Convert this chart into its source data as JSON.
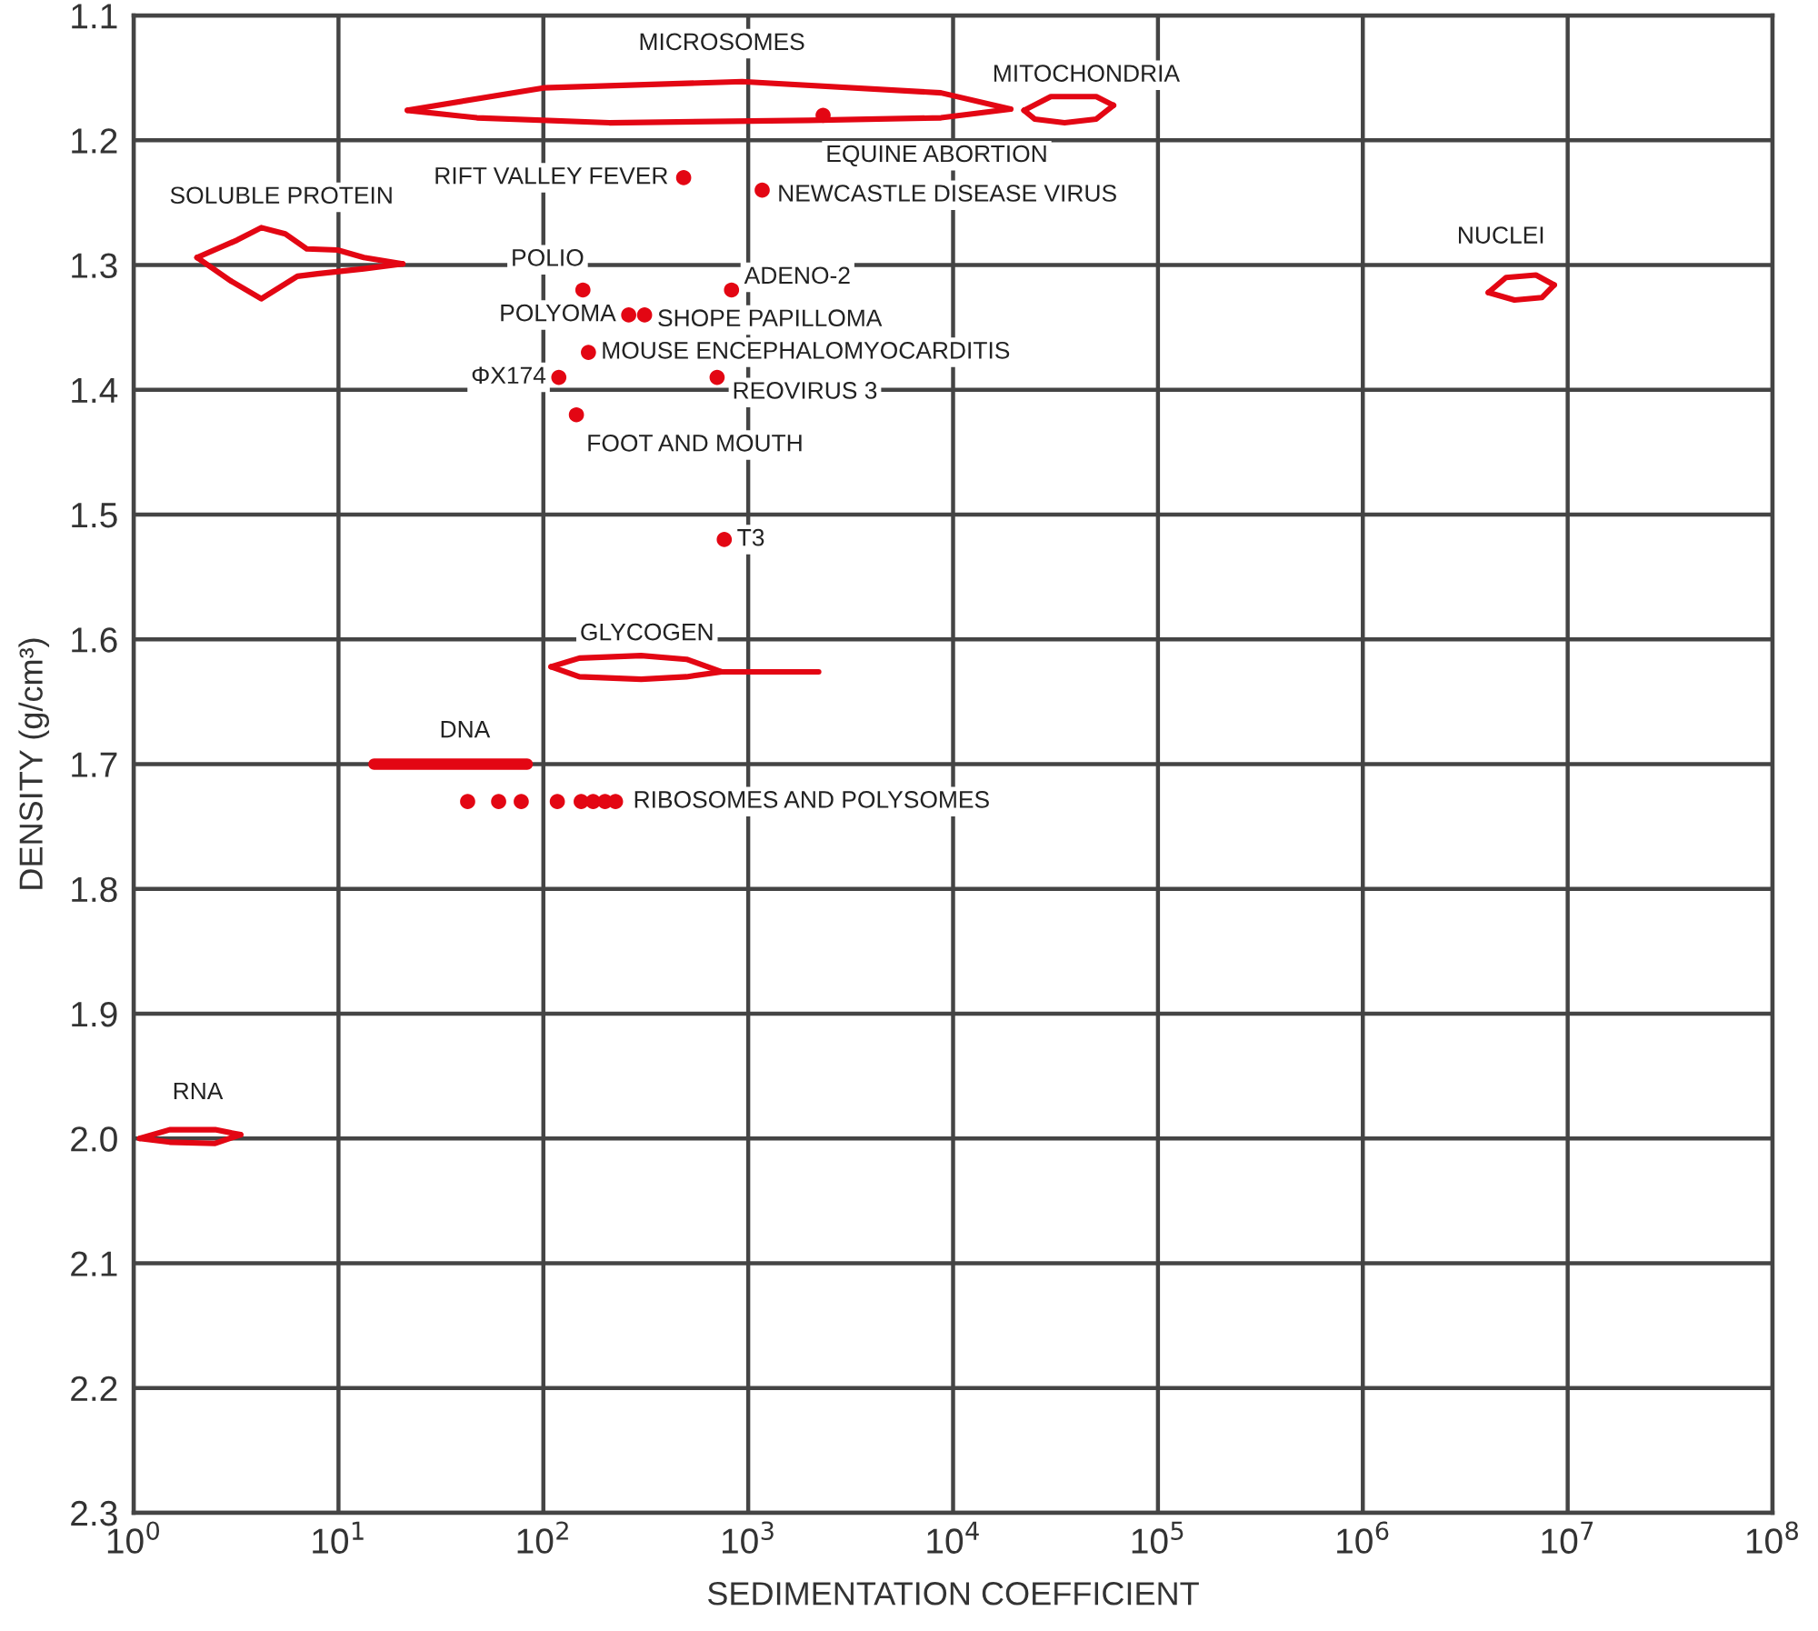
{
  "chart_data": {
    "type": "scatter",
    "xlabel": "SEDIMENTATION COEFFICIENT",
    "ylabel": "DENSITY (g/cm³)",
    "log": "x",
    "grid": true,
    "marker": "circle",
    "xlim": [
      1,
      100000000
    ],
    "ylim": [
      2.3,
      1.1
    ],
    "xticks": [
      {
        "value": 1,
        "label": "10$^{0}$"
      },
      {
        "value": 10,
        "label": "10$^{1}$"
      },
      {
        "value": 100,
        "label": "10$^{2}$"
      },
      {
        "value": 1000,
        "label": "10$^{3}$"
      },
      {
        "value": 10000,
        "label": "10$^{4}$"
      },
      {
        "value": 100000,
        "label": "10$^{5}$"
      },
      {
        "value": 1000000,
        "label": "10$^{6}$"
      },
      {
        "value": 10000000,
        "label": "10$^{7}$"
      },
      {
        "value": 100000000,
        "label": "10$^{8}$"
      }
    ],
    "yticks": [
      1.1,
      1.2,
      1.3,
      1.4,
      1.5,
      1.6,
      1.7,
      1.8,
      1.9,
      {
        "value": 2,
        "label": "2.0"
      },
      2.1,
      2.2,
      2.3
    ],
    "series": [
      {
        "name": "MICROSOMES",
        "type": "line",
        "marker": "none",
        "color": "#e30613",
        "x": [
          21.7,
          100,
          933,
          8730,
          19100
        ],
        "values": [
          1.176,
          1.158,
          1.153,
          1.162,
          1.175
        ]
      },
      {
        "type": "line",
        "marker": "none",
        "color": "#e30613",
        "x": [
          21.7,
          47.4,
          210,
          1970,
          8730,
          19100
        ],
        "values": [
          1.176,
          1.182,
          1.186,
          1.184,
          1.182,
          1.175
        ]
      },
      {
        "name": "MITOCHONDRIA",
        "type": "line",
        "marker": "none",
        "color": "#e30613",
        "x": [
          22200,
          30000,
          50000,
          60700
        ],
        "values": [
          1.176,
          1.165,
          1.165,
          1.172
        ]
      },
      {
        "type": "line",
        "marker": "none",
        "color": "#e30613",
        "x": [
          22200,
          25000,
          35000,
          50000,
          60700
        ],
        "values": [
          1.176,
          1.183,
          1.186,
          1.183,
          1.172
        ]
      },
      {
        "name": "SOLUBLE PROTEIN",
        "type": "line",
        "marker": "none",
        "color": "#e30613",
        "x": [
          2.04,
          3.2,
          4.2,
          5.5,
          7,
          9.9,
          13.3,
          20.6
        ],
        "values": [
          1.294,
          1.28,
          1.27,
          1.275,
          1.287,
          1.288,
          1.294,
          1.299
        ]
      },
      {
        "type": "line",
        "marker": "none",
        "color": "#e30613",
        "x": [
          2.04,
          3.0,
          4.2,
          6.3,
          7.9,
          13.3,
          20.6
        ],
        "values": [
          1.294,
          1.313,
          1.327,
          1.309,
          1.307,
          1.303,
          1.299
        ]
      },
      {
        "name": "NUCLEI",
        "type": "line",
        "marker": "none",
        "color": "#e30613",
        "x": [
          4100000,
          5000000,
          7000000,
          8600000
        ],
        "values": [
          1.322,
          1.31,
          1.308,
          1.316
        ]
      },
      {
        "type": "line",
        "marker": "none",
        "color": "#e30613",
        "x": [
          4100000,
          5500000,
          7500000,
          8600000
        ],
        "values": [
          1.322,
          1.328,
          1.326,
          1.316
        ]
      },
      {
        "name": "GLYCOGEN",
        "type": "line",
        "marker": "none",
        "color": "#e30613",
        "x": [
          109,
          150,
          300,
          500,
          740,
          2207
        ],
        "values": [
          1.622,
          1.615,
          1.613,
          1.616,
          1.626,
          1.626
        ]
      },
      {
        "type": "line",
        "marker": "none",
        "color": "#e30613",
        "x": [
          109,
          150,
          300,
          500,
          740
        ],
        "values": [
          1.622,
          1.63,
          1.632,
          1.63,
          1.626
        ]
      },
      {
        "name": "DNA",
        "type": "line",
        "marker": "none",
        "color": "#e30613",
        "x": [
          14.9,
          83.4
        ],
        "values": [
          1.7,
          1.7
        ]
      },
      {
        "name": "RNA",
        "type": "line",
        "marker": "none",
        "color": "#e30613",
        "x": [
          1.07,
          1.5,
          2.5,
          3.33
        ],
        "values": [
          2.0,
          1.993,
          1.993,
          1.997
        ]
      },
      {
        "type": "line",
        "marker": "none",
        "color": "#e30613",
        "x": [
          1.07,
          1.5,
          2.5,
          3.33
        ],
        "values": [
          2.0,
          2.003,
          2.004,
          1.997
        ]
      },
      {
        "name": "RIBOSOMES AND POLYSOMES",
        "color": "#e30613",
        "x": [
          42.7,
          60.5,
          78,
          117,
          153,
          175,
          200,
          225
        ],
        "values": [
          1.73,
          1.73,
          1.73,
          1.73,
          1.73,
          1.73,
          1.73,
          1.73
        ]
      },
      {
        "name": "EQUINE ABORTION",
        "color": "#e30613",
        "x": [
          2320
        ],
        "values": [
          1.18
        ]
      },
      {
        "name": "RIFT VALLEY FEVER",
        "color": "#e30613",
        "x": [
          484
        ],
        "values": [
          1.23
        ]
      },
      {
        "name": "NEWCASTLE DISEASE VIRUS",
        "color": "#e30613",
        "x": [
          1170
        ],
        "values": [
          1.24
        ]
      },
      {
        "name": "POLIO",
        "color": "#e30613",
        "x": [
          156
        ],
        "values": [
          1.32
        ]
      },
      {
        "name": "ADENO-2",
        "color": "#e30613",
        "x": [
          829
        ],
        "values": [
          1.32
        ]
      },
      {
        "name": "POLYOMA",
        "color": "#e30613",
        "x": [
          261
        ],
        "values": [
          1.34
        ]
      },
      {
        "name": "SHOPE PAPILLOMA",
        "color": "#e30613",
        "x": [
          312
        ],
        "values": [
          1.34
        ]
      },
      {
        "name": "MOUSE ENCEPHALOMYOCARDITIS",
        "color": "#e30613",
        "x": [
          166
        ],
        "values": [
          1.37
        ]
      },
      {
        "name": "ΦX174",
        "color": "#e30613",
        "x": [
          119
        ],
        "values": [
          1.39
        ]
      },
      {
        "name": "REOVIRUS 3",
        "color": "#e30613",
        "x": [
          705
        ],
        "values": [
          1.39
        ]
      },
      {
        "name": "FOOT AND MOUTH",
        "color": "#e30613",
        "x": [
          145
        ],
        "values": [
          1.42
        ]
      },
      {
        "name": "T3",
        "color": "#e30613",
        "x": [
          764
        ],
        "values": [
          1.52
        ]
      }
    ]
  }
}
